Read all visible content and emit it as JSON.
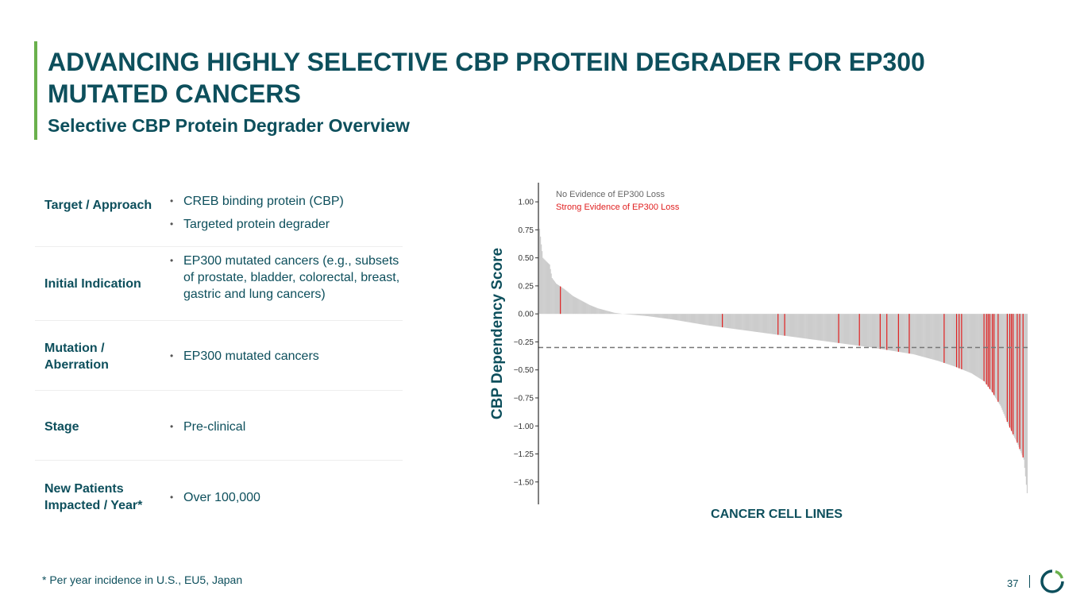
{
  "header": {
    "title": "ADVANCING HIGHLY SELECTIVE CBP PROTEIN DEGRADER FOR EP300 MUTATED CANCERS",
    "subtitle": "Selective CBP Protein Degrader Overview"
  },
  "table": {
    "rows": [
      {
        "label": "Target / Approach",
        "items": [
          "CREB binding protein (CBP)",
          "Targeted protein degrader"
        ]
      },
      {
        "label": "Initial Indication",
        "items": [
          "EP300 mutated cancers (e.g., subsets of prostate, bladder, colorectal, breast, gastric and lung cancers)"
        ]
      },
      {
        "label": "Mutation / Aberration",
        "items": [
          "EP300 mutated cancers"
        ]
      },
      {
        "label": "Stage",
        "items": [
          "Pre-clinical"
        ]
      },
      {
        "label": "New Patients Impacted / Year*",
        "items": [
          "Over 100,000"
        ]
      }
    ]
  },
  "footnote": "* Per year incidence in U.S., EU5, Japan",
  "page_number": "37",
  "colors": {
    "brand": "#0d4f5c",
    "accent": "#6ab04c",
    "bar_no_loss": "#cccccc",
    "bar_strong_loss": "#e02020"
  },
  "chart_data": {
    "type": "bar",
    "xlabel": "CANCER CELL LINES",
    "ylabel": "CBP Dependency Score",
    "ylim": [
      -1.7,
      1.1
    ],
    "yticks": [
      1.0,
      0.75,
      0.5,
      0.25,
      0.0,
      -0.25,
      -0.5,
      -0.75,
      -1.0,
      -1.25,
      -1.5
    ],
    "ytick_labels": [
      "1.00",
      "0.75",
      "0.50",
      "0.25",
      "0.00",
      "−0.25",
      "−0.50",
      "−0.75",
      "−1.00",
      "−1.25",
      "−1.50"
    ],
    "legend_position": "top-left",
    "threshold": -0.3,
    "series": [
      {
        "name": "No Evidence of EP300 Loss",
        "color": "#cccccc",
        "points": [
          [
            0,
            0.76
          ],
          [
            2,
            0.62
          ],
          [
            4,
            0.5
          ],
          [
            8,
            0.47
          ],
          [
            12,
            0.44
          ],
          [
            15,
            0.32
          ],
          [
            20,
            0.27
          ],
          [
            30,
            0.22
          ],
          [
            40,
            0.16
          ],
          [
            50,
            0.12
          ],
          [
            60,
            0.08
          ],
          [
            70,
            0.05
          ],
          [
            80,
            0.03
          ],
          [
            90,
            0.01
          ],
          [
            100,
            0.0
          ],
          [
            130,
            -0.02
          ],
          [
            160,
            -0.05
          ],
          [
            200,
            -0.1
          ],
          [
            250,
            -0.15
          ],
          [
            300,
            -0.2
          ],
          [
            350,
            -0.25
          ],
          [
            400,
            -0.3
          ],
          [
            450,
            -0.36
          ],
          [
            480,
            -0.42
          ],
          [
            500,
            -0.47
          ],
          [
            520,
            -0.53
          ],
          [
            535,
            -0.6
          ],
          [
            545,
            -0.7
          ],
          [
            555,
            -0.82
          ],
          [
            565,
            -1.0
          ],
          [
            575,
            -1.15
          ],
          [
            583,
            -1.3
          ],
          [
            585,
            -1.45
          ],
          [
            587,
            -1.6
          ]
        ]
      },
      {
        "name": "Strong Evidence of EP300 Loss",
        "color": "#e02020",
        "indices": [
          25,
          220,
          287,
          295,
          360,
          385,
          410,
          418,
          432,
          445,
          487,
          502,
          505,
          508,
          535,
          538,
          540,
          542,
          545,
          547,
          552,
          563,
          566,
          568,
          570,
          575,
          578,
          582
        ]
      }
    ]
  }
}
